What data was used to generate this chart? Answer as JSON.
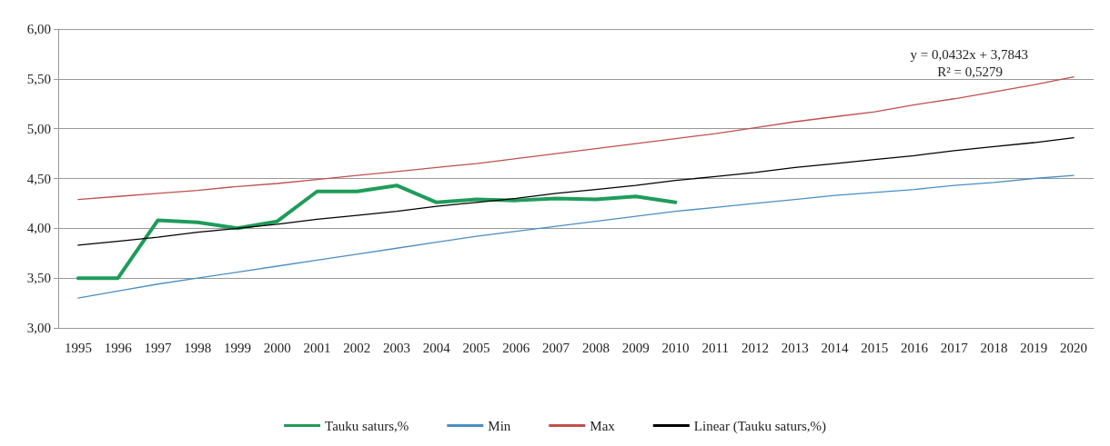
{
  "chart_data": {
    "type": "line",
    "categories": [
      "1995",
      "1996",
      "1997",
      "1998",
      "1999",
      "2000",
      "2001",
      "2002",
      "2003",
      "2004",
      "2005",
      "2006",
      "2007",
      "2008",
      "2009",
      "2010",
      "2011",
      "2012",
      "2013",
      "2014",
      "2015",
      "2016",
      "2017",
      "2018",
      "2019",
      "2020"
    ],
    "series": [
      {
        "name": "Tauku saturs,%",
        "color": "#1e9c5a",
        "values": [
          3.5,
          3.5,
          4.08,
          4.06,
          4.0,
          4.07,
          4.37,
          4.37,
          4.43,
          4.26,
          4.29,
          4.28,
          4.3,
          4.29,
          4.32,
          4.26,
          null,
          null,
          null,
          null,
          null,
          null,
          null,
          null,
          null,
          null
        ]
      },
      {
        "name": "Min",
        "color": "#4a8fc4",
        "values": [
          3.3,
          3.37,
          3.44,
          3.5,
          3.56,
          3.62,
          3.68,
          3.74,
          3.8,
          3.86,
          3.92,
          3.97,
          4.02,
          4.07,
          4.12,
          4.17,
          4.21,
          4.25,
          4.29,
          4.33,
          4.36,
          4.39,
          4.43,
          4.46,
          4.5,
          4.53
        ]
      },
      {
        "name": "Max",
        "color": "#c0504d",
        "values": [
          4.29,
          4.32,
          4.35,
          4.38,
          4.42,
          4.45,
          4.49,
          4.53,
          4.57,
          4.61,
          4.65,
          4.7,
          4.75,
          4.8,
          4.85,
          4.9,
          4.95,
          5.01,
          5.07,
          5.12,
          5.17,
          5.24,
          5.3,
          5.37,
          5.44,
          5.52
        ]
      },
      {
        "name": "Linear (Tauku saturs,%)",
        "color": "#000000",
        "values": [
          3.83,
          3.87,
          3.91,
          3.96,
          4.0,
          4.04,
          4.09,
          4.13,
          4.17,
          4.22,
          4.26,
          4.3,
          4.35,
          4.39,
          4.43,
          4.48,
          4.52,
          4.56,
          4.61,
          4.65,
          4.69,
          4.73,
          4.78,
          4.82,
          4.86,
          4.91
        ]
      }
    ],
    "ylim": [
      3,
      6
    ],
    "yticks": [
      {
        "value": 3,
        "label": "3,00"
      },
      {
        "value": 3.5,
        "label": "3,50"
      },
      {
        "value": 4,
        "label": "4,00"
      },
      {
        "value": 4.5,
        "label": "4,50"
      },
      {
        "value": 5,
        "label": "5,00"
      },
      {
        "value": 5.5,
        "label": "5,50"
      },
      {
        "value": 6,
        "label": "6,00"
      }
    ],
    "annotations": [
      "y = 0,0432x + 3,7843",
      "R² = 0,5279"
    ],
    "grid": "y",
    "legend": "bottom",
    "marker": "none"
  }
}
